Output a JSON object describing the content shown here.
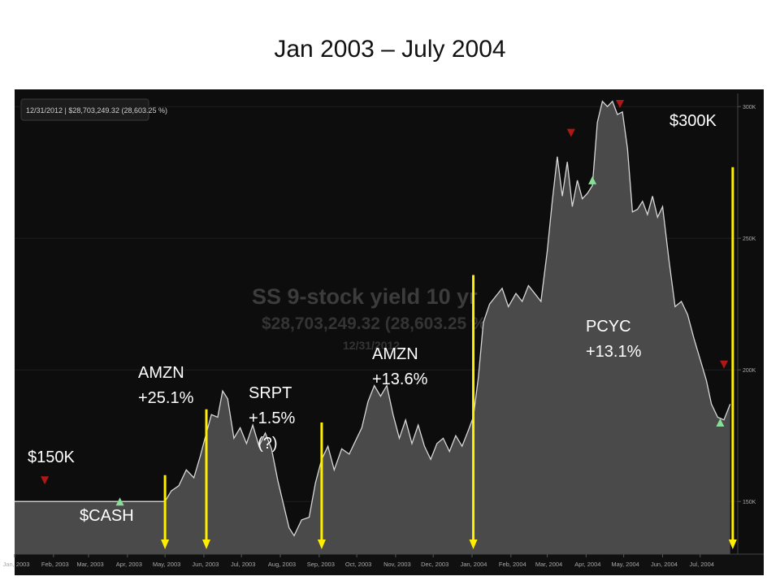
{
  "slide": {
    "title": "Jan 2003 – July 2004"
  },
  "header_readout": "12/31/2012  |  $28,703,249.32 (28,603.25 %)",
  "watermark": {
    "line1": "SS 9-stock yield 10 yr",
    "line2": "$28,703,249.32 (28,603.25 %)",
    "line3": "12/31/2012"
  },
  "annotations": {
    "start_value": "$150K",
    "end_value": "$300K",
    "cash": "$CASH",
    "amzn_1": "AMZN\n+25.1%",
    "srpt": "SRPT\n+1.5%\n  (?)",
    "amzn_2": "AMZN\n+13.6%",
    "pcyc": "PCYC\n+13.1%"
  },
  "colors": {
    "background": "#0d0d0d",
    "area_fill": "#4a4a4a",
    "area_line": "#d8d8d8",
    "marker": "#ffee00",
    "buy": "#88dd99",
    "sell": "#b01818"
  },
  "chart_data": {
    "type": "area",
    "title": "",
    "x_ticks": [
      "Jan, 2003",
      "Feb, 2003",
      "Mar, 2003",
      "Apr, 2003",
      "May, 2003",
      "Jun, 2003",
      "Jul, 2003",
      "Aug, 2003",
      "Sep, 2003",
      "Oct, 2003",
      "Nov, 2003",
      "Dec, 2003",
      "Jan, 2004",
      "Feb, 2004",
      "Mar, 2004",
      "Apr, 2004",
      "May, 2004",
      "Jun, 2004",
      "Jul, 2004"
    ],
    "y_ticks": [
      "300K",
      "250K",
      "200K",
      "150K"
    ],
    "y_tick_values": [
      300000,
      250000,
      200000,
      150000
    ],
    "ylim": [
      130000,
      305000
    ],
    "series": [
      {
        "values": [
          [
            "2003-01-01",
            150000
          ],
          [
            "2003-02-15",
            150000
          ],
          [
            "2003-04-01",
            150000
          ],
          [
            "2003-05-01",
            150000
          ],
          [
            "2003-05-06",
            154000
          ],
          [
            "2003-05-12",
            156000
          ],
          [
            "2003-05-18",
            162000
          ],
          [
            "2003-05-24",
            159000
          ],
          [
            "2003-05-29",
            167000
          ],
          [
            "2003-06-03",
            176000
          ],
          [
            "2003-06-07",
            183000
          ],
          [
            "2003-06-12",
            182000
          ],
          [
            "2003-06-16",
            192000
          ],
          [
            "2003-06-20",
            189000
          ],
          [
            "2003-06-25",
            174000
          ],
          [
            "2003-06-30",
            178000
          ],
          [
            "2003-07-05",
            172000
          ],
          [
            "2003-07-10",
            179000
          ],
          [
            "2003-07-15",
            171000
          ],
          [
            "2003-07-20",
            176000
          ],
          [
            "2003-07-25",
            170000
          ],
          [
            "2003-07-30",
            158000
          ],
          [
            "2003-08-04",
            148000
          ],
          [
            "2003-08-08",
            140000
          ],
          [
            "2003-08-12",
            137000
          ],
          [
            "2003-08-18",
            143000
          ],
          [
            "2003-08-24",
            144000
          ],
          [
            "2003-08-29",
            157000
          ],
          [
            "2003-09-03",
            166000
          ],
          [
            "2003-09-08",
            171000
          ],
          [
            "2003-09-13",
            162000
          ],
          [
            "2003-09-19",
            170000
          ],
          [
            "2003-09-25",
            168000
          ],
          [
            "2003-09-30",
            173000
          ],
          [
            "2003-10-05",
            178000
          ],
          [
            "2003-10-10",
            188000
          ],
          [
            "2003-10-15",
            194000
          ],
          [
            "2003-10-20",
            190000
          ],
          [
            "2003-10-25",
            194000
          ],
          [
            "2003-10-30",
            183000
          ],
          [
            "2003-11-04",
            174000
          ],
          [
            "2003-11-09",
            181000
          ],
          [
            "2003-11-14",
            172000
          ],
          [
            "2003-11-19",
            179000
          ],
          [
            "2003-11-24",
            171000
          ],
          [
            "2003-11-29",
            166000
          ],
          [
            "2003-12-04",
            172000
          ],
          [
            "2003-12-09",
            174000
          ],
          [
            "2003-12-14",
            169000
          ],
          [
            "2003-12-19",
            175000
          ],
          [
            "2003-12-24",
            171000
          ],
          [
            "2003-12-29",
            177000
          ],
          [
            "2004-01-02",
            182000
          ],
          [
            "2004-01-06",
            197000
          ],
          [
            "2004-01-10",
            218000
          ],
          [
            "2004-01-15",
            225000
          ],
          [
            "2004-01-20",
            228000
          ],
          [
            "2004-01-25",
            231000
          ],
          [
            "2004-01-30",
            224000
          ],
          [
            "2004-02-05",
            229000
          ],
          [
            "2004-02-10",
            226000
          ],
          [
            "2004-02-15",
            232000
          ],
          [
            "2004-02-20",
            229000
          ],
          [
            "2004-02-25",
            226000
          ],
          [
            "2004-03-01",
            245000
          ],
          [
            "2004-03-05",
            264000
          ],
          [
            "2004-03-09",
            281000
          ],
          [
            "2004-03-13",
            266000
          ],
          [
            "2004-03-17",
            279000
          ],
          [
            "2004-03-21",
            262000
          ],
          [
            "2004-03-25",
            272000
          ],
          [
            "2004-03-29",
            265000
          ],
          [
            "2004-04-02",
            267000
          ],
          [
            "2004-04-06",
            270000
          ],
          [
            "2004-04-10",
            294000
          ],
          [
            "2004-04-14",
            302000
          ],
          [
            "2004-04-18",
            300000
          ],
          [
            "2004-04-22",
            302000
          ],
          [
            "2004-04-26",
            297000
          ],
          [
            "2004-04-30",
            298000
          ],
          [
            "2004-05-04",
            284000
          ],
          [
            "2004-05-08",
            260000
          ],
          [
            "2004-05-12",
            261000
          ],
          [
            "2004-05-16",
            264000
          ],
          [
            "2004-05-20",
            259000
          ],
          [
            "2004-05-24",
            266000
          ],
          [
            "2004-05-28",
            258000
          ],
          [
            "2004-06-01",
            262000
          ],
          [
            "2004-06-06",
            242000
          ],
          [
            "2004-06-11",
            224000
          ],
          [
            "2004-06-16",
            226000
          ],
          [
            "2004-06-21",
            221000
          ],
          [
            "2004-06-26",
            212000
          ],
          [
            "2004-07-01",
            204000
          ],
          [
            "2004-07-06",
            196000
          ],
          [
            "2004-07-10",
            187000
          ],
          [
            "2004-07-15",
            182000
          ],
          [
            "2004-07-20",
            181000
          ],
          [
            "2004-07-25",
            187000
          ]
        ]
      }
    ],
    "trade_markers": [
      {
        "date": "2003-05-01",
        "label": "AMZN +25.1%",
        "value_top": 160000
      },
      {
        "date": "2003-06-03",
        "label": "AMZN +25.1%",
        "value_top": 185000
      },
      {
        "date": "2003-09-03",
        "label": "SRPT +1.5%",
        "value_top": 180000
      },
      {
        "date": "2004-01-02",
        "label": "AMZN +13.6%",
        "value_top": 236000
      },
      {
        "date": "2004-07-27",
        "label": "PCYC +13.1%",
        "value_top": 277000
      }
    ],
    "buy_signals": [
      {
        "date": "2003-03-26",
        "value": 150000
      },
      {
        "date": "2004-04-06",
        "value": 272000
      },
      {
        "date": "2004-07-17",
        "value": 180000
      }
    ],
    "sell_signals": [
      {
        "date": "2003-01-25",
        "value": 158000
      },
      {
        "date": "2004-03-20",
        "value": 290000
      },
      {
        "date": "2004-04-28",
        "value": 301000
      },
      {
        "date": "2004-07-20",
        "value": 202000
      }
    ]
  }
}
